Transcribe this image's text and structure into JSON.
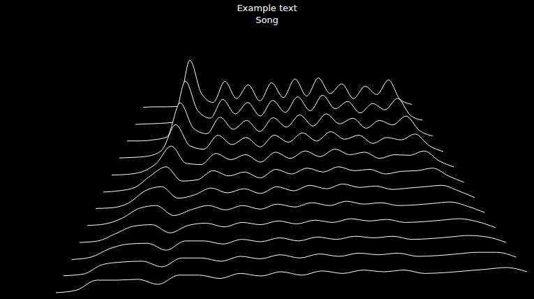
{
  "chart_data": {
    "type": "area",
    "title": "Example text",
    "subtitle": "Song",
    "color": "#ffffff",
    "tick_labels": false,
    "x": [
      0,
      1,
      2,
      3,
      4,
      5,
      6,
      7,
      8,
      9,
      10,
      11,
      12,
      13,
      14,
      15,
      16,
      17,
      18,
      19,
      20,
      21,
      22,
      23
    ],
    "xlim": [
      0,
      23
    ],
    "ylim": [
      0,
      100
    ],
    "series": [
      {
        "values": [
          2,
          3,
          3,
          4,
          98,
          30,
          12,
          55,
          20,
          48,
          15,
          52,
          22,
          60,
          25,
          62,
          30,
          50,
          20,
          45,
          28,
          58,
          18,
          8
        ]
      },
      {
        "values": [
          2,
          3,
          4,
          6,
          85,
          28,
          14,
          50,
          22,
          44,
          18,
          48,
          25,
          55,
          28,
          58,
          32,
          46,
          24,
          42,
          30,
          52,
          20,
          10
        ]
      },
      {
        "values": [
          3,
          3,
          5,
          10,
          72,
          26,
          16,
          46,
          24,
          40,
          20,
          45,
          28,
          50,
          30,
          52,
          34,
          44,
          26,
          40,
          32,
          48,
          22,
          12
        ]
      },
      {
        "values": [
          3,
          4,
          6,
          16,
          60,
          24,
          18,
          42,
          26,
          38,
          22,
          42,
          30,
          46,
          32,
          48,
          35,
          42,
          28,
          38,
          34,
          44,
          24,
          14
        ]
      },
      {
        "values": [
          3,
          4,
          8,
          22,
          50,
          22,
          20,
          38,
          28,
          36,
          24,
          40,
          30,
          42,
          33,
          45,
          36,
          40,
          30,
          36,
          35,
          42,
          26,
          16
        ]
      },
      {
        "values": [
          3,
          5,
          10,
          28,
          42,
          20,
          22,
          36,
          28,
          34,
          25,
          38,
          31,
          40,
          34,
          42,
          36,
          38,
          31,
          35,
          36,
          40,
          28,
          18
        ]
      },
      {
        "values": [
          4,
          5,
          12,
          30,
          36,
          19,
          24,
          34,
          27,
          33,
          26,
          36,
          30,
          38,
          33,
          40,
          35,
          37,
          32,
          34,
          36,
          38,
          30,
          20
        ]
      },
      {
        "values": [
          4,
          6,
          14,
          28,
          32,
          18,
          26,
          32,
          26,
          32,
          27,
          34,
          30,
          36,
          32,
          38,
          34,
          36,
          32,
          33,
          35,
          37,
          31,
          22
        ]
      },
      {
        "values": [
          4,
          6,
          16,
          26,
          28,
          17,
          27,
          30,
          25,
          31,
          28,
          33,
          29,
          34,
          31,
          36,
          33,
          35,
          31,
          32,
          34,
          36,
          32,
          24
        ]
      },
      {
        "values": [
          4,
          7,
          18,
          24,
          25,
          16,
          28,
          28,
          24,
          30,
          27,
          32,
          28,
          33,
          30,
          34,
          32,
          34,
          30,
          31,
          33,
          35,
          33,
          26
        ]
      },
      {
        "values": [
          5,
          7,
          19,
          22,
          23,
          16,
          27,
          27,
          23,
          29,
          26,
          31,
          27,
          32,
          29,
          33,
          31,
          33,
          29,
          30,
          32,
          34,
          34,
          28
        ]
      },
      {
        "values": [
          5,
          8,
          20,
          20,
          21,
          15,
          26,
          26,
          22,
          28,
          25,
          30,
          26,
          31,
          28,
          32,
          30,
          32,
          28,
          29,
          31,
          33,
          35,
          30
        ]
      }
    ]
  }
}
